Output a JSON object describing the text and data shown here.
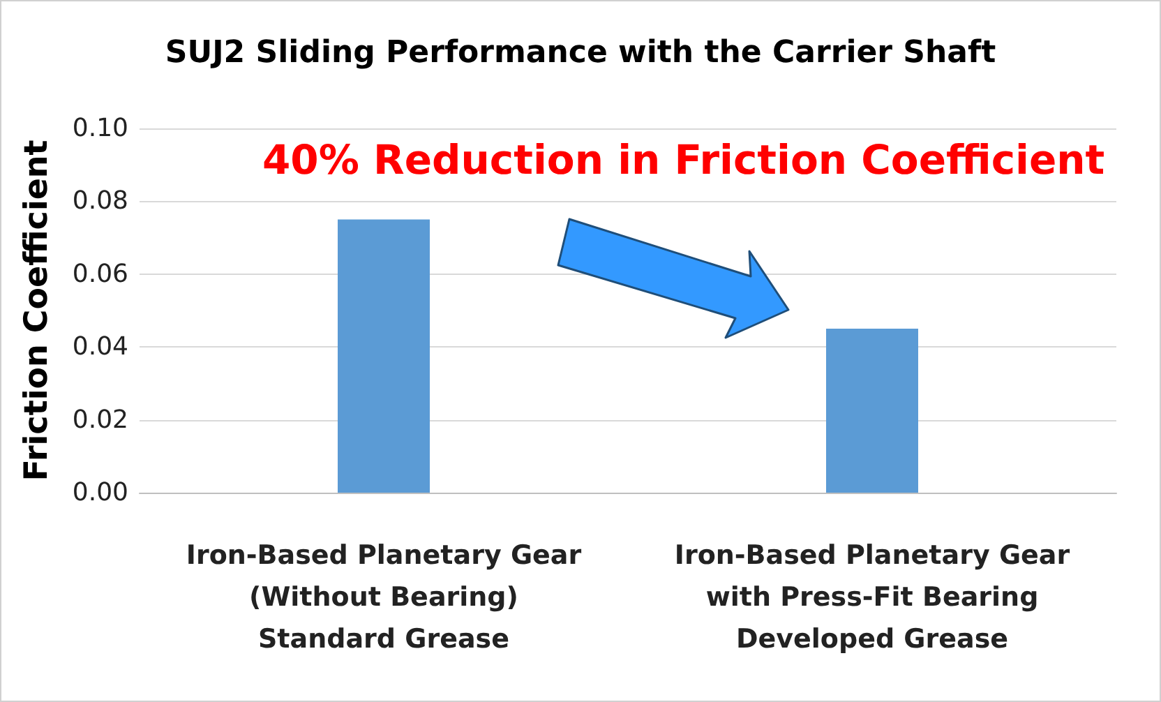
{
  "chart_data": {
    "type": "bar",
    "title": "SUJ2 Sliding Performance with the Carrier Shaft",
    "ylabel": "Friction Coefficient",
    "categories": [
      "Iron-Based Planetary Gear\n(Without Bearing)\nStandard Grease",
      "Iron-Based Planetary Gear\nwith Press-Fit Bearing\nDeveloped Grease"
    ],
    "values": [
      0.075,
      0.045
    ],
    "color": "#5b9bd5",
    "ylim": [
      0,
      0.1
    ],
    "yticks": [
      {
        "value": 0,
        "label": "0.00"
      },
      {
        "value": 0.02,
        "label": "0.02"
      },
      {
        "value": 0.04,
        "label": "0.04"
      },
      {
        "value": 0.06,
        "label": "0.06"
      },
      {
        "value": 0.08,
        "label": "0.08"
      },
      {
        "value": 0.1,
        "label": "0.10"
      }
    ],
    "grid": "y",
    "annotations": [
      "40% Reduction in Friction Coefficient"
    ]
  }
}
